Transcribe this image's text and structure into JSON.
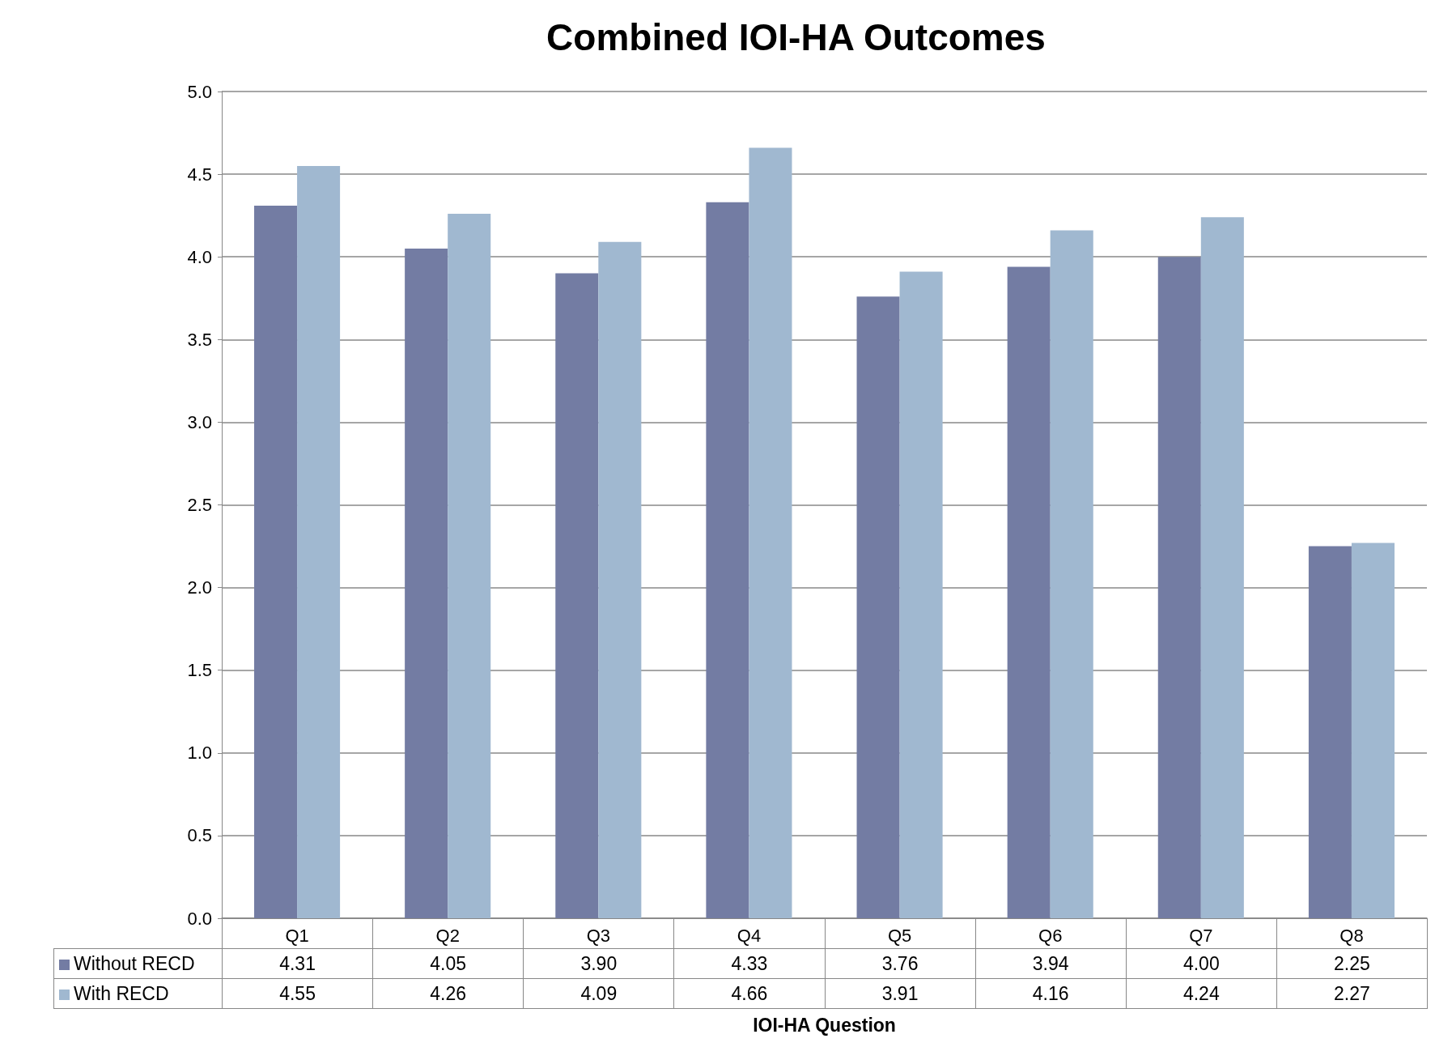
{
  "chart_data": {
    "type": "bar",
    "title": "Combined IOI-HA Outcomes",
    "xlabel": "IOI-HA Question",
    "categories": [
      "Q1",
      "Q2",
      "Q3",
      "Q4",
      "Q5",
      "Q6",
      "Q7",
      "Q8"
    ],
    "series": [
      {
        "name": "Without RECD",
        "color": "#737ca3",
        "values": [
          4.31,
          4.05,
          3.9,
          4.33,
          3.76,
          3.94,
          4.0,
          2.25
        ],
        "value_labels": [
          "4.31",
          "4.05",
          "3.90",
          "4.33",
          "3.76",
          "3.94",
          "4.00",
          "2.25"
        ]
      },
      {
        "name": "With RECD",
        "color": "#a0b8d0",
        "values": [
          4.55,
          4.26,
          4.09,
          4.66,
          3.91,
          4.16,
          4.24,
          2.27
        ],
        "value_labels": [
          "4.55",
          "4.26",
          "4.09",
          "4.66",
          "3.91",
          "4.16",
          "4.24",
          "2.27"
        ]
      }
    ],
    "ylim": [
      0,
      5
    ],
    "yticks": [
      {
        "value": 0,
        "label": "0.0"
      },
      0.5,
      {
        "value": 1,
        "label": "1.0"
      },
      1.5,
      {
        "value": 2,
        "label": "2.0"
      },
      2.5,
      {
        "value": 3,
        "label": "3.0"
      },
      3.5,
      {
        "value": 4,
        "label": "4.0"
      },
      4.5,
      {
        "value": 5,
        "label": "5.0"
      }
    ],
    "grid": "y",
    "legend": "bottom left"
  }
}
